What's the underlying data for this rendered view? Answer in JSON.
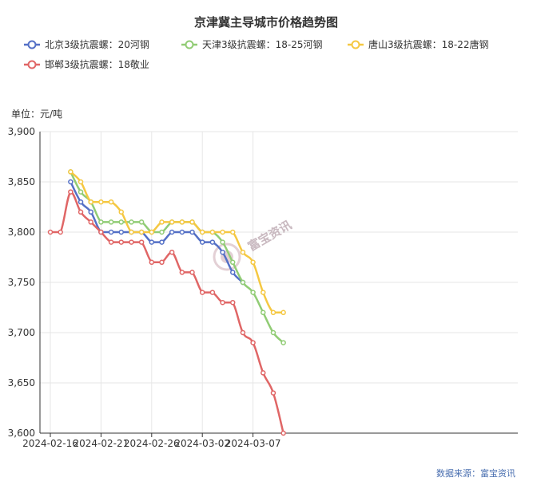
{
  "chart_data": {
    "type": "line",
    "title": "京津冀主导城市价格趋势图",
    "unit_label": "单位：元/吨",
    "source_label": "数据来源：富宝资讯",
    "watermark": "富宝资讯",
    "ylim": [
      3600,
      3900
    ],
    "y_ticks": [
      3600,
      3650,
      3700,
      3750,
      3800,
      3850,
      3900
    ],
    "y_tick_labels": [
      "3,600",
      "3,650",
      "3,700",
      "3,750",
      "3,800",
      "3,850",
      "3,900"
    ],
    "x_tick_labels": [
      "2024-02-16",
      "2024-02-21",
      "2024-02-26",
      "2024-03-02",
      "2024-03-07"
    ],
    "x_tick_index": [
      0,
      5,
      10,
      15,
      20
    ],
    "x_count": 24,
    "grid": true,
    "legend_position": "top",
    "series": [
      {
        "name": "北京3级抗震螺：20河钢",
        "color": "#5470c6",
        "values": [
          null,
          null,
          3850,
          3830,
          3820,
          3800,
          3800,
          3800,
          3800,
          3800,
          3790,
          3790,
          3800,
          3800,
          3800,
          3790,
          3790,
          3780,
          3760,
          3750,
          null,
          null,
          null,
          null
        ]
      },
      {
        "name": "天津3级抗震螺：18-25河钢",
        "color": "#91cc75",
        "values": [
          null,
          null,
          3860,
          3840,
          3830,
          3810,
          3810,
          3810,
          3810,
          3810,
          3800,
          3800,
          3810,
          3810,
          3810,
          3800,
          3800,
          3790,
          3770,
          3750,
          3740,
          3720,
          3700,
          3690
        ]
      },
      {
        "name": "唐山3级抗震螺：18-22唐钢",
        "color": "#f5c842",
        "values": [
          null,
          null,
          3860,
          3850,
          3830,
          3830,
          3830,
          3820,
          3800,
          3800,
          3800,
          3810,
          3810,
          3810,
          3810,
          3800,
          3800,
          3800,
          3800,
          3780,
          3770,
          3740,
          3720,
          3720
        ]
      },
      {
        "name": "邯郸3级抗震螺：18敬业",
        "color": "#e06666",
        "values": [
          3800,
          3800,
          3840,
          3820,
          3810,
          3800,
          3790,
          3790,
          3790,
          3790,
          3770,
          3770,
          3780,
          3760,
          3760,
          3740,
          3740,
          3730,
          3730,
          3700,
          3690,
          3660,
          3640,
          3600
        ]
      }
    ]
  }
}
